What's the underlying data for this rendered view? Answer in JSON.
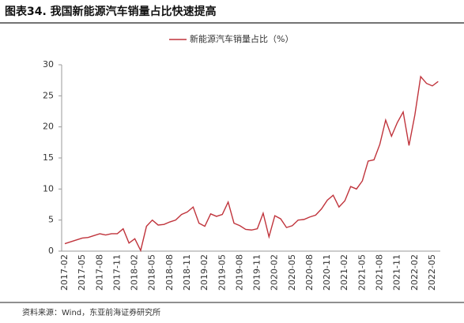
{
  "chart_data": {
    "type": "line",
    "title": "图表34. 我国新能源汽车销量占比快速提高",
    "source": "资料来源：Wind，东亚前海证券研究所",
    "categories": [
      "2017-02",
      null,
      null,
      "2017-05",
      null,
      null,
      "2017-08",
      null,
      null,
      "2017-11",
      null,
      null,
      "2018-02",
      null,
      null,
      "2018-05",
      null,
      null,
      "2018-08",
      null,
      null,
      "2018-11",
      null,
      null,
      "2019-02",
      null,
      null,
      "2019-05",
      null,
      null,
      "2019-08",
      null,
      null,
      "2019-11",
      null,
      null,
      "2020-02",
      null,
      null,
      "2020-05",
      null,
      null,
      "2020-08",
      null,
      null,
      "2020-11",
      null,
      null,
      "2021-02",
      null,
      null,
      "2021-05",
      null,
      null,
      "2021-08",
      null,
      null,
      "2021-11",
      null,
      null,
      "2022-02",
      null,
      null,
      "2022-05",
      null
    ],
    "series": [
      {
        "name": "新能源汽车销量占比（%）",
        "color": "#c0343c",
        "values": [
          1.2,
          1.5,
          1.8,
          2.1,
          2.2,
          2.5,
          2.8,
          2.6,
          2.8,
          2.8,
          3.6,
          1.3,
          2.0,
          0.1,
          4.0,
          5.0,
          4.2,
          4.3,
          4.7,
          5.0,
          5.9,
          6.3,
          7.1,
          4.5,
          4.0,
          6.0,
          5.6,
          5.9,
          7.9,
          4.5,
          4.1,
          3.5,
          3.4,
          3.6,
          6.1,
          2.3,
          5.7,
          5.2,
          3.8,
          4.1,
          5.0,
          5.1,
          5.5,
          5.8,
          6.8,
          8.2,
          9.0,
          7.1,
          8.1,
          10.4,
          10.0,
          11.3,
          14.5,
          14.7,
          17.2,
          21.1,
          18.5,
          20.7,
          22.4,
          17.0,
          21.9,
          28.1,
          27.0,
          26.6,
          27.3
        ]
      }
    ],
    "ylim": [
      0,
      30
    ],
    "yticks": [
      0,
      5,
      10,
      15,
      20,
      25,
      30
    ],
    "grid": false,
    "legend": "top"
  }
}
